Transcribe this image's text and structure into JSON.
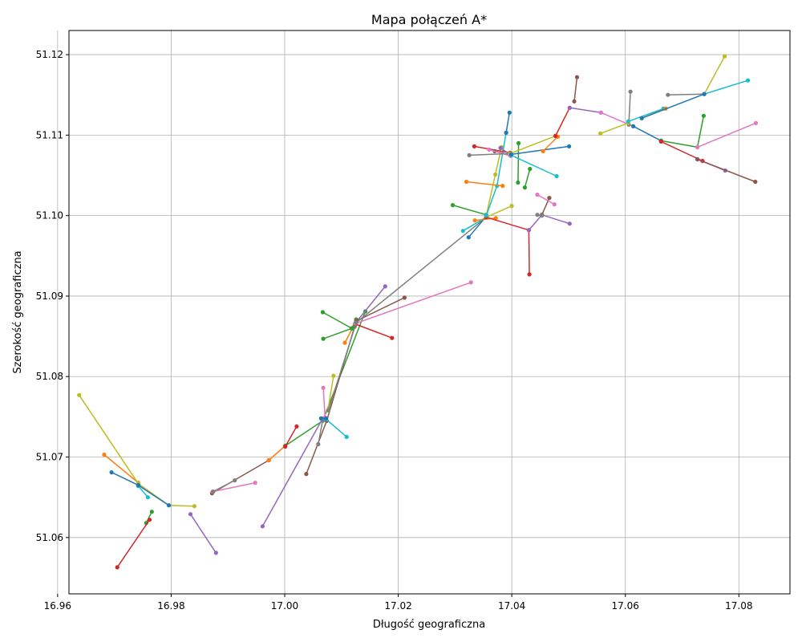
{
  "chart_data": {
    "type": "line",
    "title": "Mapa połączeń A*",
    "xlabel": "Długość geograficzna",
    "ylabel": "Szerokość geograficzna",
    "xlim": [
      16.962,
      17.089
    ],
    "ylim": [
      51.053,
      51.123
    ],
    "grid": true,
    "x_ticks": [
      16.96,
      16.98,
      17.0,
      17.02,
      17.04,
      17.06,
      17.08
    ],
    "x_tick_labels": [
      "16.96",
      "16.98",
      "17.00",
      "17.02",
      "17.04",
      "17.06",
      "17.08"
    ],
    "y_ticks": [
      51.06,
      51.07,
      51.08,
      51.09,
      51.1,
      51.11,
      51.12
    ],
    "y_tick_labels": [
      "51.06",
      "51.07",
      "51.08",
      "51.09",
      "51.10",
      "51.11",
      "51.12"
    ],
    "palette": [
      "#1f77b4",
      "#ff7f0e",
      "#2ca02c",
      "#d62728",
      "#9467bd",
      "#8c564b",
      "#e377c2",
      "#7f7f7f",
      "#bcbd22",
      "#17becf"
    ],
    "series": [
      {
        "points": [
          [
            16.9695,
            51.0681
          ],
          [
            16.9742,
            51.0665
          ]
        ]
      },
      {
        "points": [
          [
            16.9682,
            51.0703
          ],
          [
            16.9742,
            51.0668
          ]
        ]
      },
      {
        "points": [
          [
            16.9766,
            51.0632
          ],
          [
            16.9756,
            51.0618
          ]
        ]
      },
      {
        "points": [
          [
            16.9705,
            51.0563
          ],
          [
            16.9762,
            51.0622
          ]
        ]
      },
      {
        "points": [
          [
            16.9834,
            51.0629
          ],
          [
            16.9879,
            51.0581
          ]
        ]
      },
      {
        "points": [
          [
            16.9872,
            51.0655
          ],
          [
            16.9972,
            51.0696
          ]
        ]
      },
      {
        "points": [
          [
            16.9873,
            51.0657
          ],
          [
            16.9948,
            51.0668
          ]
        ]
      },
      {
        "points": [
          [
            16.9912,
            51.0671
          ],
          [
            16.9874,
            51.0657
          ]
        ]
      },
      {
        "points": [
          [
            16.9638,
            51.0777
          ],
          [
            16.9742,
            51.0667
          ],
          [
            16.9796,
            51.064
          ],
          [
            16.9841,
            51.0639
          ]
        ]
      },
      {
        "points": [
          [
            16.9742,
            51.0664
          ],
          [
            16.9759,
            51.065
          ]
        ]
      },
      {
        "points": [
          [
            16.9742,
            51.0665
          ],
          [
            16.9796,
            51.064
          ]
        ]
      },
      {
        "points": [
          [
            16.9972,
            51.0696
          ],
          [
            17.0001,
            51.0714
          ]
        ]
      },
      {
        "points": [
          [
            17.0001,
            51.0714
          ],
          [
            17.0067,
            51.0745
          ],
          [
            17.0142,
            51.0881
          ]
        ]
      },
      {
        "points": [
          [
            17.0001,
            51.0713
          ],
          [
            17.0021,
            51.0738
          ]
        ]
      },
      {
        "points": [
          [
            16.9961,
            51.0614
          ],
          [
            17.0067,
            51.0748
          ]
        ]
      },
      {
        "points": [
          [
            17.0038,
            51.0679
          ],
          [
            17.0074,
            51.0745
          ],
          [
            17.0123,
            51.0862
          ]
        ]
      },
      {
        "points": [
          [
            17.0068,
            51.0786
          ],
          [
            17.0071,
            51.0749
          ]
        ]
      },
      {
        "points": [
          [
            17.0059,
            51.0716
          ],
          [
            17.0067,
            51.0746
          ]
        ]
      },
      {
        "points": [
          [
            17.0076,
            51.0758
          ],
          [
            17.0086,
            51.0801
          ]
        ]
      },
      {
        "points": [
          [
            17.0073,
            51.0747
          ],
          [
            17.0109,
            51.0725
          ]
        ]
      },
      {
        "points": [
          [
            17.0064,
            51.0748
          ],
          [
            17.0073,
            51.0748
          ]
        ]
      },
      {
        "points": [
          [
            17.0106,
            51.0842
          ],
          [
            17.0126,
            51.0869
          ]
        ]
      },
      {
        "points": [
          [
            17.0067,
            51.088
          ],
          [
            17.0118,
            51.086
          ],
          [
            17.0126,
            51.0871
          ],
          [
            17.0119,
            51.086
          ],
          [
            17.0068,
            51.0847
          ]
        ]
      },
      {
        "points": [
          [
            17.0125,
            51.0865
          ],
          [
            17.0189,
            51.0848
          ]
        ]
      },
      {
        "points": [
          [
            17.0124,
            51.0866
          ],
          [
            17.0177,
            51.0912
          ]
        ]
      },
      {
        "points": [
          [
            17.0126,
            51.0869
          ],
          [
            17.0211,
            51.0898
          ]
        ]
      },
      {
        "points": [
          [
            17.0125,
            51.0866
          ],
          [
            17.0328,
            51.0917
          ]
        ]
      },
      {
        "points": [
          [
            17.0077,
            51.0758
          ],
          [
            17.0126,
            51.0867
          ],
          [
            17.0355,
            51.0998
          ]
        ]
      },
      {
        "points": [
          [
            17.0355,
            51.0998
          ],
          [
            17.04,
            51.1012
          ]
        ]
      },
      {
        "points": [
          [
            17.0314,
            51.0981
          ],
          [
            17.0355,
            51.0998
          ]
        ]
      },
      {
        "points": [
          [
            17.0324,
            51.0973
          ],
          [
            17.0355,
            51.0999
          ]
        ]
      },
      {
        "points": [
          [
            17.0335,
            51.0994
          ],
          [
            17.0372,
            51.0997
          ]
        ]
      },
      {
        "points": [
          [
            17.0296,
            51.1013
          ],
          [
            17.0355,
            51.1001
          ]
        ]
      },
      {
        "points": [
          [
            17.0355,
            51.0998
          ],
          [
            17.043,
            51.0982
          ],
          [
            17.0431,
            51.0927
          ]
        ]
      },
      {
        "points": [
          [
            17.043,
            51.0982
          ],
          [
            17.0453,
            51.1001
          ],
          [
            17.0502,
            51.099
          ]
        ]
      },
      {
        "points": [
          [
            17.0453,
            51.1001
          ],
          [
            17.0466,
            51.1022
          ]
        ]
      },
      {
        "points": [
          [
            17.0445,
            51.1026
          ],
          [
            17.0475,
            51.1014
          ]
        ]
      },
      {
        "points": [
          [
            17.0445,
            51.1001
          ],
          [
            17.0453,
            51.1
          ]
        ]
      },
      {
        "points": [
          [
            17.0355,
            51.1
          ],
          [
            17.0371,
            51.1051
          ],
          [
            17.0382,
            51.1085
          ]
        ]
      },
      {
        "points": [
          [
            17.0355,
            51.1
          ],
          [
            17.0374,
            51.1037
          ],
          [
            17.039,
            51.1103
          ]
        ]
      },
      {
        "points": [
          [
            17.039,
            51.1103
          ],
          [
            17.0396,
            51.1128
          ]
        ]
      },
      {
        "points": [
          [
            17.032,
            51.1042
          ],
          [
            17.0384,
            51.1037
          ]
        ]
      },
      {
        "points": [
          [
            17.0412,
            51.109
          ],
          [
            17.0411,
            51.1041
          ]
        ]
      },
      {
        "points": [
          [
            17.0334,
            51.1086
          ],
          [
            17.0397,
            51.1078
          ]
        ]
      },
      {
        "points": [
          [
            17.038,
            51.1084
          ],
          [
            17.0399,
            51.1075
          ]
        ]
      },
      {
        "points": [
          [
            17.037,
            51.108
          ],
          [
            17.0397,
            51.1075
          ]
        ]
      },
      {
        "points": [
          [
            17.036,
            51.1082
          ],
          [
            17.0398,
            51.1074
          ]
        ]
      },
      {
        "points": [
          [
            17.0325,
            51.1075
          ],
          [
            17.0397,
            51.1077
          ]
        ]
      },
      {
        "points": [
          [
            17.0397,
            51.1077
          ],
          [
            17.0477,
            51.1099
          ]
        ]
      },
      {
        "points": [
          [
            17.0399,
            51.1075
          ],
          [
            17.0479,
            51.1049
          ]
        ]
      },
      {
        "points": [
          [
            17.0399,
            51.1076
          ],
          [
            17.0501,
            51.1086
          ]
        ]
      },
      {
        "points": [
          [
            17.0455,
            51.108
          ],
          [
            17.0481,
            51.1098
          ]
        ]
      },
      {
        "points": [
          [
            17.0423,
            51.1035
          ],
          [
            17.0432,
            51.1058
          ]
        ]
      },
      {
        "points": [
          [
            17.0477,
            51.1099
          ],
          [
            17.0502,
            51.1134
          ]
        ]
      },
      {
        "points": [
          [
            17.0502,
            51.1134
          ],
          [
            17.0557,
            51.1128
          ]
        ]
      },
      {
        "points": [
          [
            17.051,
            51.1142
          ],
          [
            17.0515,
            51.1172
          ]
        ]
      },
      {
        "points": [
          [
            17.0557,
            51.1128
          ],
          [
            17.0614,
            51.1111
          ]
        ]
      },
      {
        "points": [
          [
            17.0606,
            51.1113
          ],
          [
            17.0609,
            51.1154
          ]
        ]
      },
      {
        "points": [
          [
            17.0556,
            51.1102
          ],
          [
            17.0605,
            51.1115
          ]
        ]
      },
      {
        "points": [
          [
            17.0605,
            51.1117
          ],
          [
            17.0667,
            51.1133
          ]
        ]
      },
      {
        "points": [
          [
            17.0614,
            51.1111
          ],
          [
            17.0663,
            51.1093
          ]
        ]
      },
      {
        "points": [
          [
            17.0629,
            51.1121
          ],
          [
            17.0671,
            51.1133
          ]
        ]
      },
      {
        "points": [
          [
            17.0663,
            51.1093
          ],
          [
            17.0727,
            51.1085
          ],
          [
            17.0738,
            51.1124
          ]
        ]
      },
      {
        "points": [
          [
            17.0663,
            51.1092
          ],
          [
            17.0736,
            51.1068
          ]
        ]
      },
      {
        "points": [
          [
            17.0727,
            51.107
          ],
          [
            17.0776,
            51.1056
          ]
        ]
      },
      {
        "points": [
          [
            17.0727,
            51.107
          ],
          [
            17.0829,
            51.1042
          ]
        ]
      },
      {
        "points": [
          [
            17.0727,
            51.1085
          ],
          [
            17.083,
            51.1115
          ]
        ]
      },
      {
        "points": [
          [
            17.0675,
            51.115
          ],
          [
            17.0739,
            51.1151
          ]
        ]
      },
      {
        "points": [
          [
            17.0739,
            51.1151
          ],
          [
            17.0775,
            51.1198
          ]
        ]
      },
      {
        "points": [
          [
            17.0739,
            51.1151
          ],
          [
            17.0816,
            51.1168
          ]
        ]
      },
      {
        "points": [
          [
            17.0629,
            51.1121
          ],
          [
            17.0739,
            51.1151
          ]
        ]
      }
    ]
  }
}
